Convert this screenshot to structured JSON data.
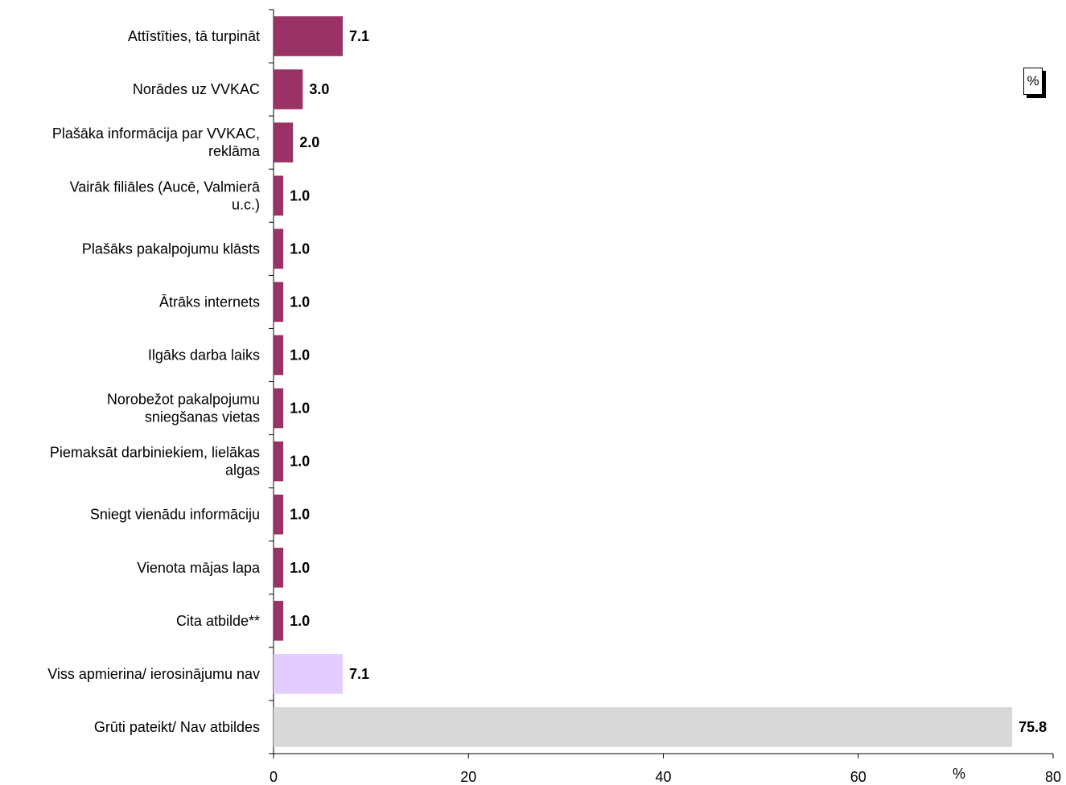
{
  "chart_data": {
    "type": "bar",
    "orientation": "horizontal",
    "categories": [
      [
        "Attīstīties, tā turpināt"
      ],
      [
        "Norādes uz VVKAC"
      ],
      [
        "Plašāka informācija par VVKAC,",
        "reklāma"
      ],
      [
        "Vairāk filiāles (Aucē, Valmierā",
        "u.c.)"
      ],
      [
        "Plašāks pakalpojumu klāsts"
      ],
      [
        "Ātrāks internets"
      ],
      [
        "Ilgāks darba laiks"
      ],
      [
        "Norobežot pakalpojumu",
        "sniegšanas vietas"
      ],
      [
        "Piemaksāt darbiniekiem, lielākas",
        "algas"
      ],
      [
        "Sniegt vienādu informāciju"
      ],
      [
        "Vienota mājas lapa"
      ],
      [
        "Cita atbilde**"
      ],
      [
        "Viss apmierina/ ierosinājumu nav"
      ],
      [
        "Grūti pateikt/ Nav atbildes"
      ]
    ],
    "values": [
      7.1,
      3.0,
      2.0,
      1.0,
      1.0,
      1.0,
      1.0,
      1.0,
      1.0,
      1.0,
      1.0,
      1.0,
      7.1,
      75.8
    ],
    "value_labels": [
      "7.1",
      "3.0",
      "2.0",
      "1.0",
      "1.0",
      "1.0",
      "1.0",
      "1.0",
      "1.0",
      "1.0",
      "1.0",
      "1.0",
      "7.1",
      "75.8"
    ],
    "bar_colors": [
      "#993366",
      "#993366",
      "#993366",
      "#993366",
      "#993366",
      "#993366",
      "#993366",
      "#993366",
      "#993366",
      "#993366",
      "#993366",
      "#993366",
      "#E3CCFF",
      "#D9D9D9"
    ],
    "xlim": [
      0,
      80
    ],
    "xticks": [
      0,
      20,
      40,
      60,
      80
    ],
    "xlabel": "%",
    "legend": "%",
    "legend_placement": "top-right",
    "grid": false
  }
}
